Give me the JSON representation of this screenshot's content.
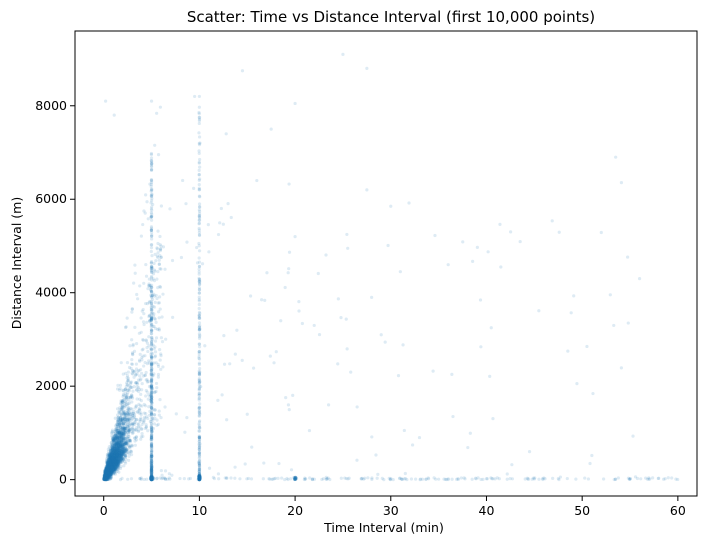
{
  "chart_data": {
    "type": "scatter",
    "title": "Scatter: Time vs Distance Interval (first 10,000 points)",
    "xlabel": "Time Interval (min)",
    "ylabel": "Distance Interval (m)",
    "xlim": [
      -3,
      62
    ],
    "ylim": [
      -350,
      9600
    ],
    "x_ticks": [
      0,
      10,
      20,
      30,
      40,
      50,
      60
    ],
    "y_ticks": [
      0,
      2000,
      4000,
      6000,
      8000
    ],
    "x_tick_labels": [
      "0",
      "10",
      "20",
      "30",
      "40",
      "50",
      "60"
    ],
    "y_tick_labels": [
      "0",
      "2000",
      "4000",
      "6000",
      "8000"
    ],
    "grid": false,
    "legend": "none",
    "marker_color": "#1f77b4",
    "marker_alpha": 0.15,
    "sample_note_points": [
      {
        "x": 0.2,
        "y": 8100
      },
      {
        "x": 1.1,
        "y": 7800
      },
      {
        "x": 5.0,
        "y": 8100
      },
      {
        "x": 9.5,
        "y": 8200
      },
      {
        "x": 10.0,
        "y": 8200
      },
      {
        "x": 20.0,
        "y": 8050
      },
      {
        "x": 25.0,
        "y": 9100
      },
      {
        "x": 27.5,
        "y": 8800
      },
      {
        "x": 14.5,
        "y": 8750
      },
      {
        "x": 53.5,
        "y": 6900
      },
      {
        "x": 53.3,
        "y": 3300
      },
      {
        "x": 50.5,
        "y": 2850
      },
      {
        "x": 48.5,
        "y": 2750
      },
      {
        "x": 40.5,
        "y": 3250
      },
      {
        "x": 41.5,
        "y": 4550
      },
      {
        "x": 36.0,
        "y": 4600
      },
      {
        "x": 36.5,
        "y": 1350
      },
      {
        "x": 44.5,
        "y": 600
      },
      {
        "x": 30.0,
        "y": 5850
      },
      {
        "x": 27.5,
        "y": 6200
      },
      {
        "x": 17.5,
        "y": 7500
      },
      {
        "x": 12.8,
        "y": 7400
      },
      {
        "x": 16.0,
        "y": 6400
      },
      {
        "x": 25.5,
        "y": 4950
      },
      {
        "x": 31.0,
        "y": 4450
      },
      {
        "x": 28.0,
        "y": 3900
      },
      {
        "x": 20.0,
        "y": 5200
      },
      {
        "x": 16.5,
        "y": 3850
      },
      {
        "x": 18.5,
        "y": 3400
      },
      {
        "x": 22.0,
        "y": 3300
      },
      {
        "x": 29.0,
        "y": 3100
      },
      {
        "x": 33.0,
        "y": 900
      },
      {
        "x": 21.5,
        "y": 1050
      },
      {
        "x": 15.0,
        "y": 1400
      },
      {
        "x": 17.8,
        "y": 2500
      },
      {
        "x": 23.5,
        "y": 1600
      },
      {
        "x": 58.0,
        "y": 30
      },
      {
        "x": 59.0,
        "y": 40
      },
      {
        "x": 55.0,
        "y": 10
      },
      {
        "x": 45.0,
        "y": 15
      },
      {
        "x": 40.0,
        "y": 20
      },
      {
        "x": 35.0,
        "y": 10
      }
    ]
  }
}
